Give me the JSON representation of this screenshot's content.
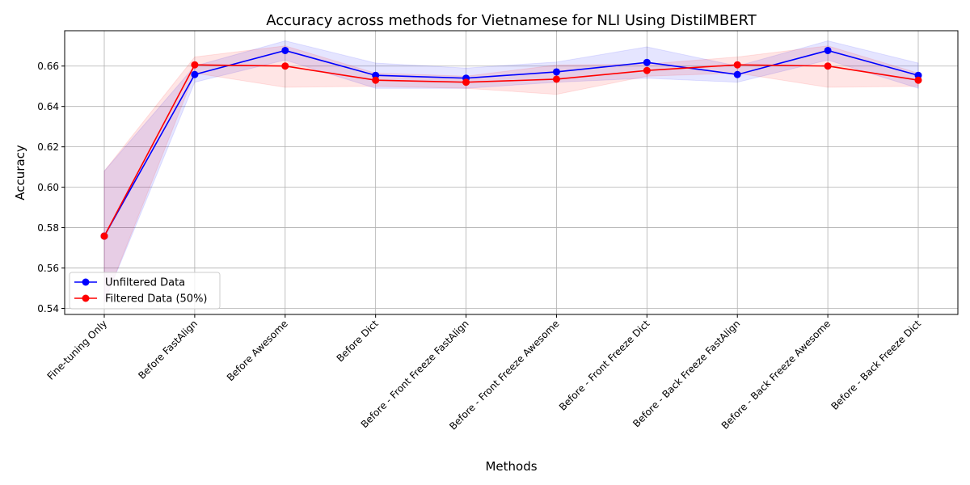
{
  "chart_data": {
    "type": "line",
    "title": "Accuracy across methods for Vietnamese for NLI Using DistilMBERT",
    "xlabel": "Methods",
    "ylabel": "Accuracy",
    "categories": [
      "Fine-tuning Only",
      "Before FastAlign",
      "Before Awesome",
      "Before Dict",
      "Before - Front Freeze FastAlign",
      "Before - Front Freeze Awesome",
      "Before - Front Freeze Dict",
      "Before - Back Freeze FastAlign",
      "Before - Back Freeze Awesome",
      "Before - Back Freeze Dict"
    ],
    "ylim": [
      0.537,
      0.6775
    ],
    "yticks": [
      0.54,
      0.56,
      0.58,
      0.6,
      0.62,
      0.64,
      0.66
    ],
    "ytick_labels": [
      "0.54",
      "0.56",
      "0.58",
      "0.60",
      "0.62",
      "0.64",
      "0.66"
    ],
    "grid": true,
    "legend_position": "lower-left",
    "series": [
      {
        "name": "Unfiltered Data",
        "color": "#0000ff",
        "band_color": "#0000ff",
        "values": [
          0.5758,
          0.6558,
          0.6677,
          0.6554,
          0.654,
          0.6571,
          0.6618,
          0.6558,
          0.6677,
          0.6554
        ],
        "lower": [
          0.543,
          0.652,
          0.663,
          0.649,
          0.649,
          0.652,
          0.654,
          0.652,
          0.663,
          0.649
        ],
        "upper": [
          0.608,
          0.66,
          0.6725,
          0.6615,
          0.659,
          0.662,
          0.6695,
          0.66,
          0.6725,
          0.6615
        ]
      },
      {
        "name": "Filtered Data (50%)",
        "color": "#ff0000",
        "band_color": "#ff0000",
        "values": [
          0.5758,
          0.6606,
          0.66,
          0.653,
          0.652,
          0.6535,
          0.6578,
          0.6606,
          0.66,
          0.653
        ],
        "lower": [
          0.543,
          0.6565,
          0.6495,
          0.65,
          0.649,
          0.646,
          0.655,
          0.6565,
          0.6495,
          0.65
        ],
        "upper": [
          0.608,
          0.6645,
          0.67,
          0.6565,
          0.655,
          0.6605,
          0.661,
          0.6645,
          0.67,
          0.6565
        ]
      }
    ]
  }
}
